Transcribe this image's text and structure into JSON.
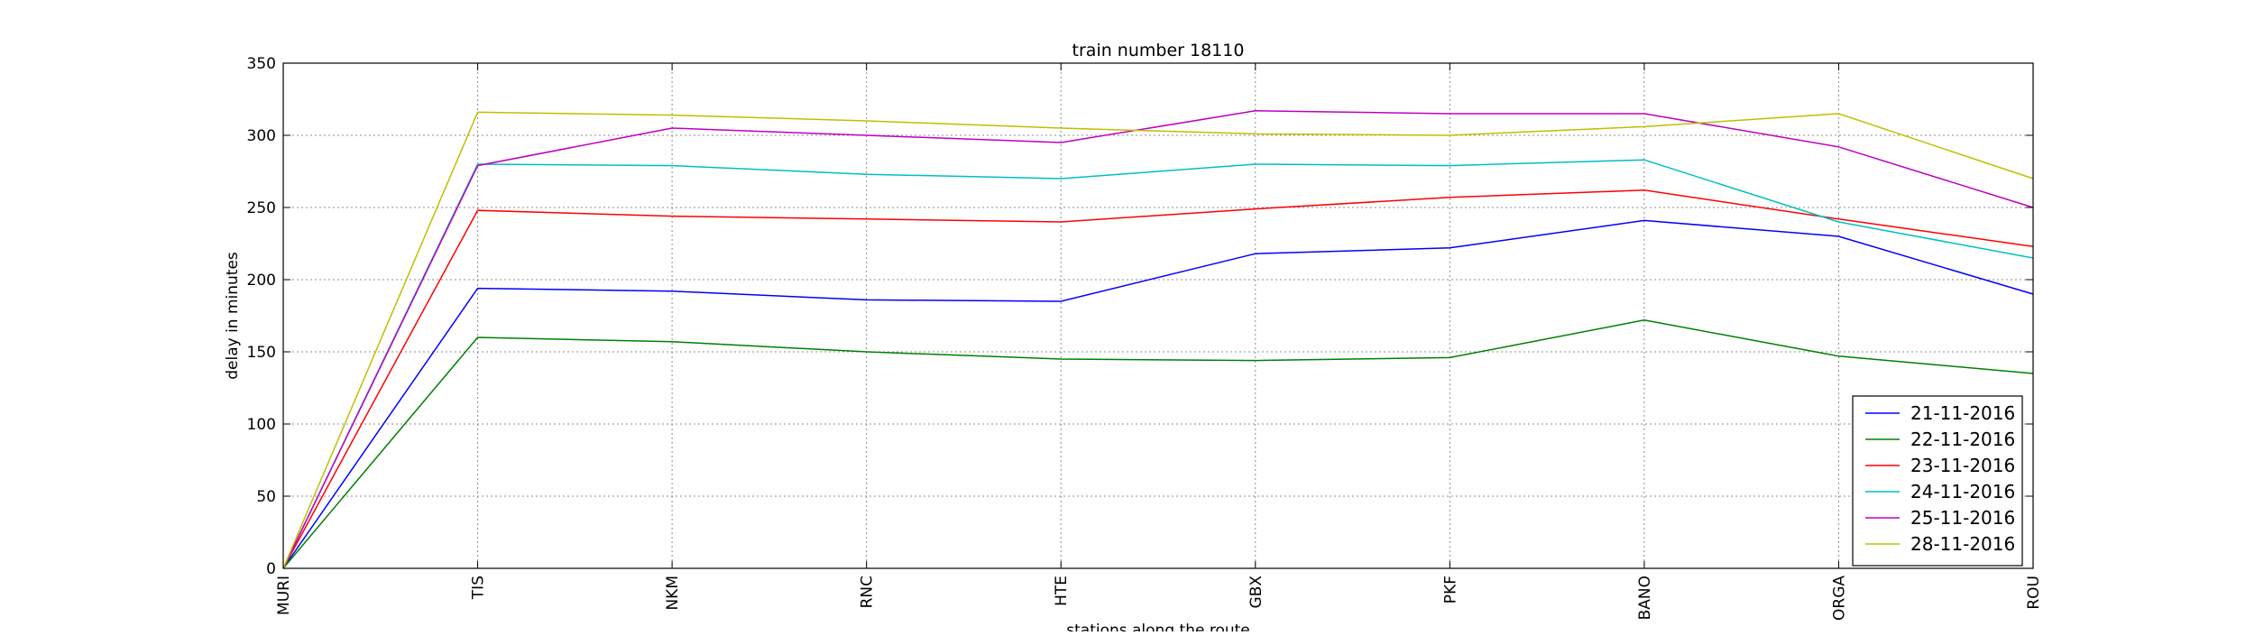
{
  "chart_data": {
    "type": "line",
    "title": "train number 18110",
    "xlabel": "stations along the route",
    "ylabel": "delay in minutes",
    "categories": [
      "MURI",
      "TIS",
      "NKM",
      "RNC",
      "HTE",
      "GBX",
      "PKF",
      "BANO",
      "ORGA",
      "ROU"
    ],
    "ylim": [
      0,
      350
    ],
    "yticks": [
      0,
      50,
      100,
      150,
      200,
      250,
      300,
      350
    ],
    "grid": true,
    "legend_position": "lower-right",
    "series": [
      {
        "name": "21-11-2016",
        "color": "#0000ff",
        "values": [
          0,
          194,
          192,
          186,
          185,
          218,
          222,
          241,
          230,
          190
        ]
      },
      {
        "name": "22-11-2016",
        "color": "#008000",
        "values": [
          0,
          160,
          157,
          150,
          145,
          144,
          146,
          172,
          147,
          135
        ]
      },
      {
        "name": "23-11-2016",
        "color": "#ff0000",
        "values": [
          0,
          248,
          244,
          242,
          240,
          249,
          257,
          262,
          242,
          223
        ]
      },
      {
        "name": "24-11-2016",
        "color": "#00bfbf",
        "values": [
          0,
          280,
          279,
          273,
          270,
          280,
          279,
          283,
          240,
          215
        ]
      },
      {
        "name": "25-11-2016",
        "color": "#bf00bf",
        "values": [
          0,
          279,
          305,
          300,
          295,
          317,
          315,
          315,
          292,
          250
        ]
      },
      {
        "name": "28-11-2016",
        "color": "#bfbf00",
        "values": [
          0,
          316,
          314,
          310,
          305,
          301,
          300,
          306,
          315,
          270
        ]
      }
    ]
  }
}
